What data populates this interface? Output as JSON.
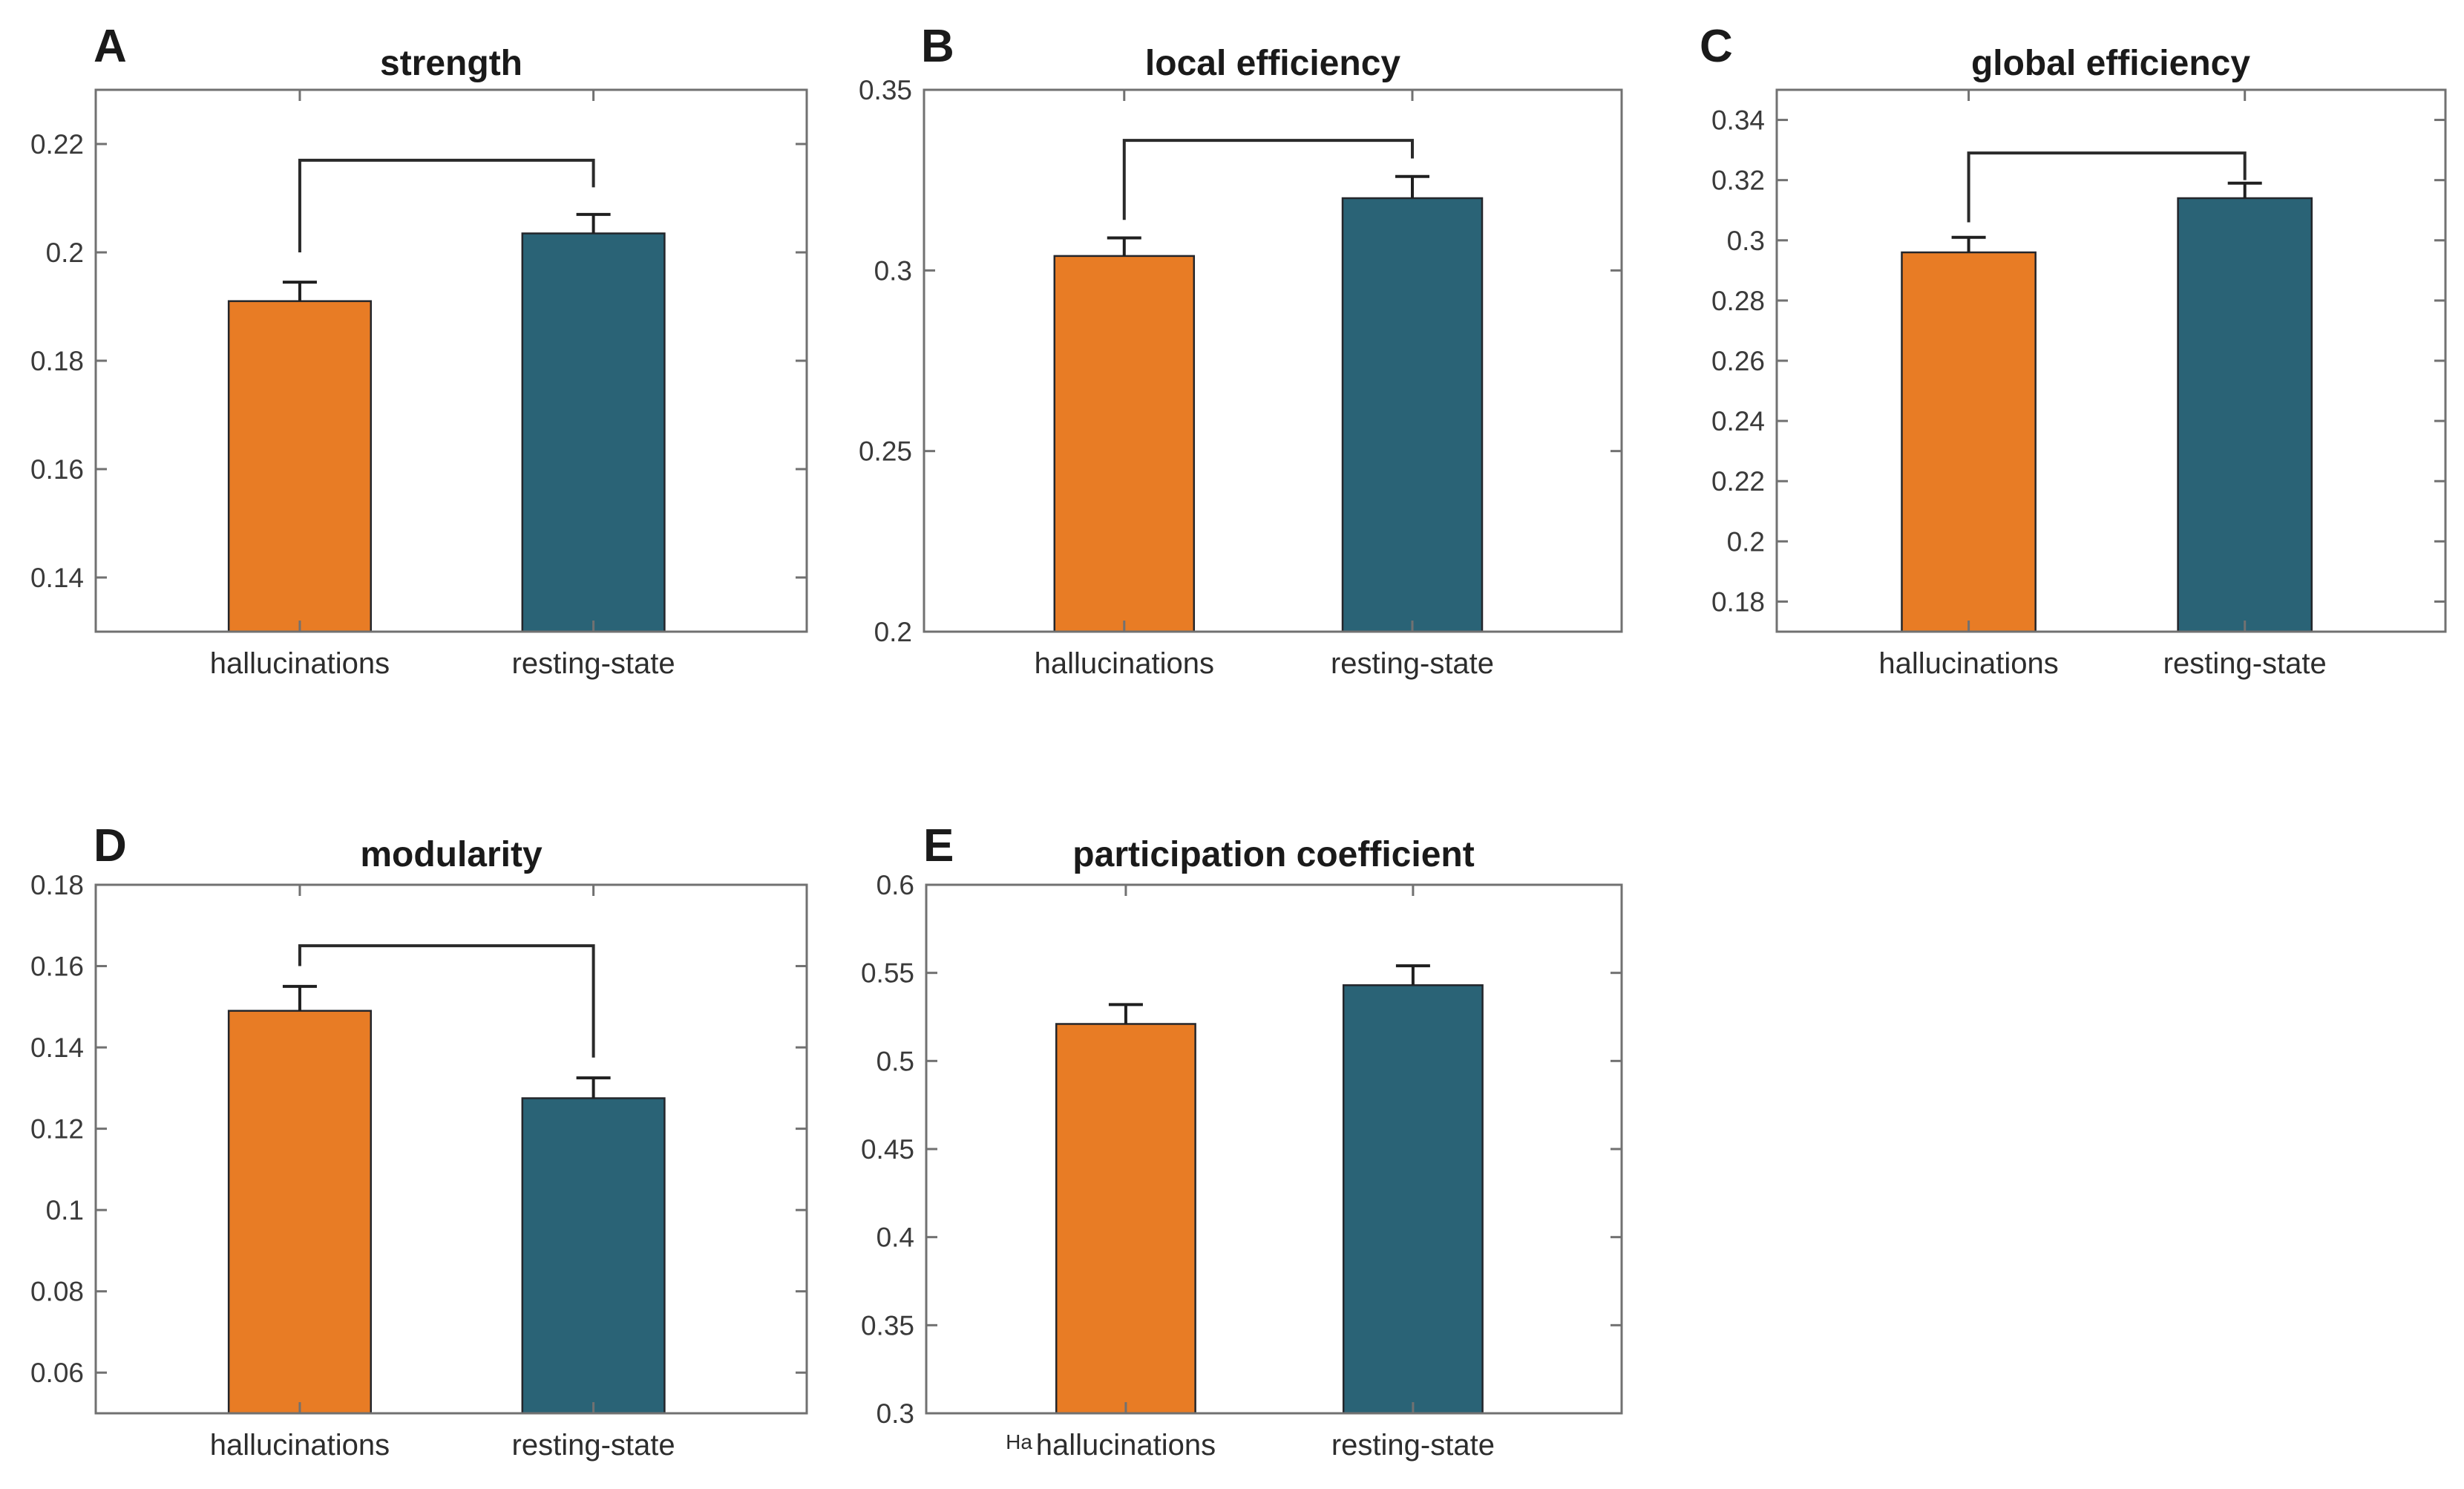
{
  "figure": {
    "background": "#ffffff",
    "conditions": [
      "hallucinations",
      "resting-state"
    ],
    "colors": {
      "hallucinations_bar": "#E87C25",
      "resting_state_bar": "#2A6376",
      "axis": "#717171",
      "error_bar": "#1f1f1f",
      "bracket": "#2a2a2a"
    }
  },
  "chart_data": [
    {
      "type": "bar",
      "panel_label": "A",
      "title": "strength",
      "categories": [
        "hallucinations",
        "resting-state"
      ],
      "values": [
        0.191,
        0.2035
      ],
      "errors_upper": [
        0.0035,
        0.0035
      ],
      "ylim": [
        0.13,
        0.23
      ],
      "yticks": [
        0.14,
        0.16,
        0.18,
        0.2,
        0.22
      ],
      "bar_colors": [
        "#E87C25",
        "#2A6376"
      ],
      "grid": false,
      "legend": null,
      "significance_bracket": {
        "present": true,
        "bracket_y": 0.217,
        "left_arm_bottom": 0.2,
        "right_arm_bottom": 0.212
      }
    },
    {
      "type": "bar",
      "panel_label": "B",
      "title": "local efficiency",
      "categories": [
        "hallucinations",
        "resting-state"
      ],
      "values": [
        0.304,
        0.32
      ],
      "errors_upper": [
        0.005,
        0.006
      ],
      "ylim": [
        0.2,
        0.35
      ],
      "yticks": [
        0.2,
        0.25,
        0.3,
        0.35
      ],
      "bar_colors": [
        "#E87C25",
        "#2A6376"
      ],
      "grid": false,
      "legend": null,
      "significance_bracket": {
        "present": true,
        "bracket_y": 0.336,
        "left_arm_bottom": 0.314,
        "right_arm_bottom": 0.331
      }
    },
    {
      "type": "bar",
      "panel_label": "C",
      "title": "global efficiency",
      "categories": [
        "hallucinations",
        "resting-state"
      ],
      "values": [
        0.296,
        0.314
      ],
      "errors_upper": [
        0.005,
        0.005
      ],
      "ylim": [
        0.17,
        0.35
      ],
      "yticks": [
        0.18,
        0.2,
        0.22,
        0.24,
        0.26,
        0.28,
        0.3,
        0.32,
        0.34
      ],
      "bar_colors": [
        "#E87C25",
        "#2A6376"
      ],
      "grid": false,
      "legend": null,
      "significance_bracket": {
        "present": true,
        "bracket_y": 0.329,
        "left_arm_bottom": 0.306,
        "right_arm_bottom": 0.32
      }
    },
    {
      "type": "bar",
      "panel_label": "D",
      "title": "modularity",
      "categories": [
        "hallucinations",
        "resting-state"
      ],
      "values": [
        0.149,
        0.1275
      ],
      "errors_upper": [
        0.006,
        0.005
      ],
      "ylim": [
        0.05,
        0.18
      ],
      "yticks": [
        0.06,
        0.08,
        0.1,
        0.12,
        0.14,
        0.16,
        0.18
      ],
      "bar_colors": [
        "#E87C25",
        "#2A6376"
      ],
      "grid": false,
      "legend": null,
      "significance_bracket": {
        "present": true,
        "bracket_y": 0.165,
        "left_arm_bottom": 0.16,
        "right_arm_bottom": 0.1375
      }
    },
    {
      "type": "bar",
      "panel_label": "E",
      "title": "participation coefficient",
      "categories": [
        "hallucinations",
        "resting-state"
      ],
      "values": [
        0.521,
        0.543
      ],
      "errors_upper": [
        0.011,
        0.011
      ],
      "ylim": [
        0.3,
        0.6
      ],
      "yticks": [
        0.3,
        0.35,
        0.4,
        0.45,
        0.5,
        0.55,
        0.6
      ],
      "bar_colors": [
        "#E87C25",
        "#2A6376"
      ],
      "grid": false,
      "legend": null,
      "stray_label": "Ha",
      "significance_bracket": {
        "present": false
      }
    }
  ]
}
